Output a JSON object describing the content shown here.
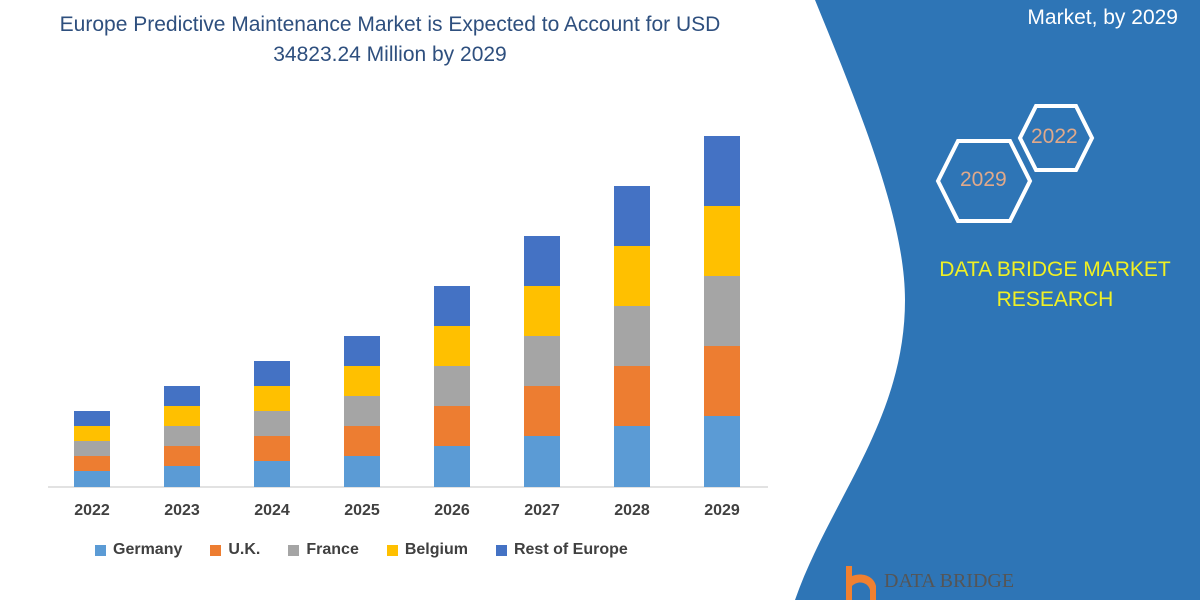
{
  "title": "Europe Predictive Maintenance Market is Expected to Account for USD 34823.24 Million by 2029",
  "side_panel": {
    "title_fragment": "Market, by 2029",
    "hex_years": [
      "2022",
      "2029"
    ],
    "brand": "DATA BRIDGE MARKET RESEARCH",
    "logo_text": "DATA BRIDGE",
    "color": "#2e75b6"
  },
  "chart_data": {
    "type": "bar",
    "stacked": true,
    "grid": false,
    "legend_placement": "bottom",
    "y_axis_shown": false,
    "categories": [
      "2022",
      "2023",
      "2024",
      "2025",
      "2026",
      "2027",
      "2028",
      "2029"
    ],
    "series": [
      {
        "name": "Germany",
        "color": "#5b9bd5",
        "values": [
          16,
          21,
          26,
          31,
          41,
          51,
          61,
          71
        ]
      },
      {
        "name": "U.K.",
        "color": "#ed7d31",
        "values": [
          15,
          20,
          25,
          30,
          40,
          50,
          60,
          70
        ]
      },
      {
        "name": "France",
        "color": "#a5a5a5",
        "values": [
          15,
          20,
          25,
          30,
          40,
          50,
          60,
          70
        ]
      },
      {
        "name": "Belgium",
        "color": "#ffc000",
        "values": [
          15,
          20,
          25,
          30,
          40,
          50,
          60,
          70
        ]
      },
      {
        "name": "Rest of Europe",
        "color": "#4472c4",
        "values": [
          15,
          20,
          25,
          30,
          40,
          50,
          60,
          70
        ]
      }
    ]
  }
}
